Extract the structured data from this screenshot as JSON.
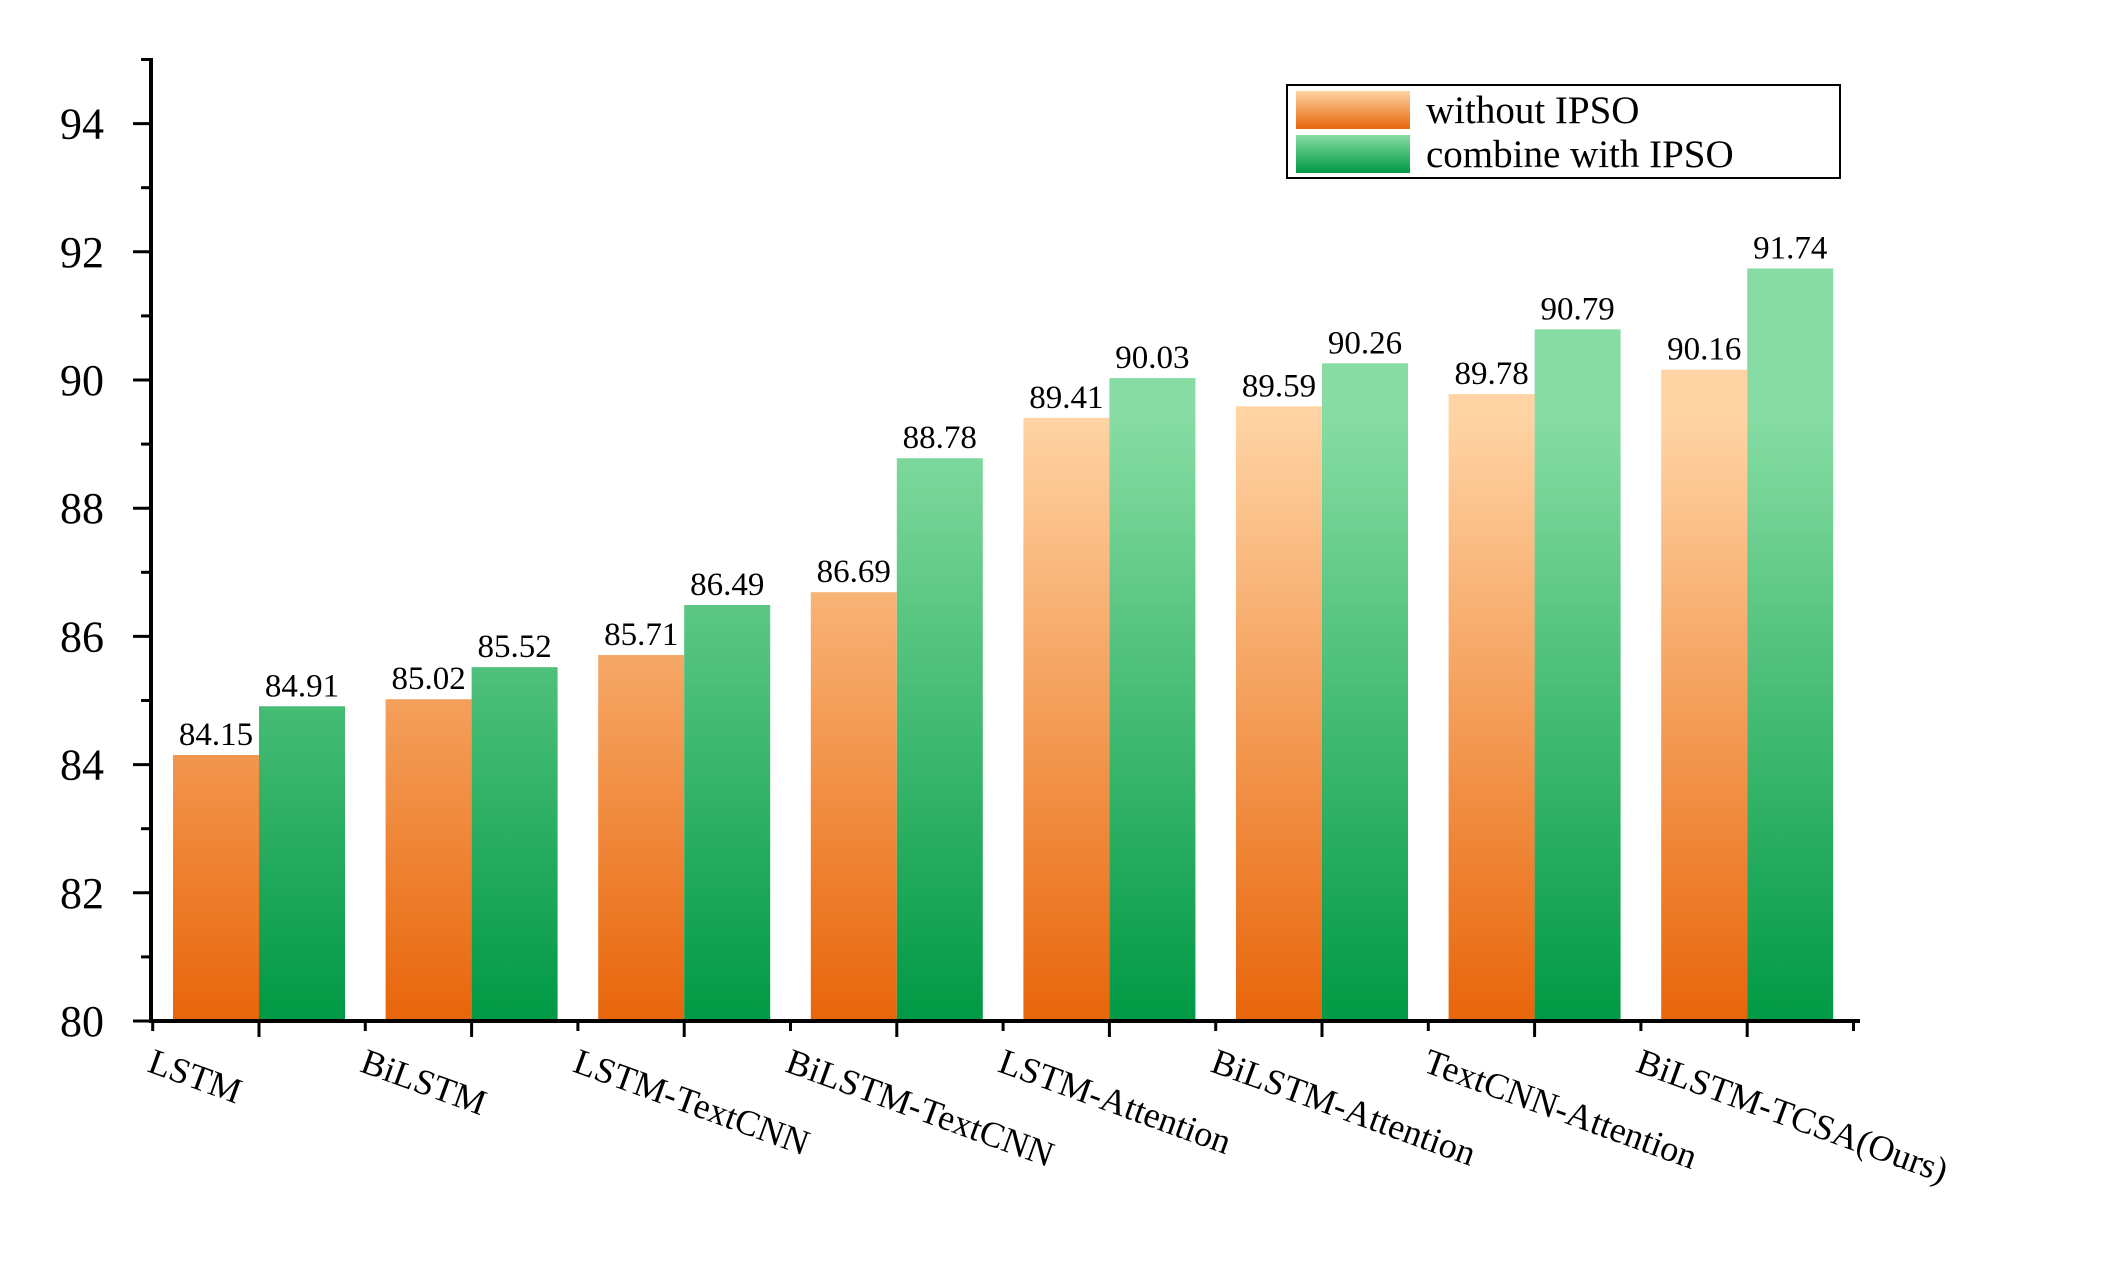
{
  "chart_data": {
    "type": "bar",
    "title": "",
    "xlabel": "",
    "ylabel": "",
    "ylim": [
      80,
      95
    ],
    "yticks": [
      80,
      82,
      84,
      86,
      88,
      90,
      92,
      94
    ],
    "grid": false,
    "legend_position": "top-right",
    "categories": [
      "LSTM",
      "BiLSTM",
      "LSTM-TextCNN",
      "BiLSTM-TextCNN",
      "LSTM-Attention",
      "BiLSTM-Attention",
      "TextCNN-Attention",
      "BiLSTM-TCSA(Ours)"
    ],
    "series": [
      {
        "name": "without IPSO",
        "values": [
          84.15,
          85.02,
          85.71,
          86.69,
          89.41,
          89.59,
          89.78,
          90.16
        ],
        "color_top": "#ffd3a3",
        "color_bottom": "#e8650a"
      },
      {
        "name": "combine with IPSO",
        "values": [
          84.91,
          85.52,
          86.49,
          88.78,
          90.03,
          90.26,
          90.79,
          91.74
        ],
        "color_top": "#86dca2",
        "color_bottom": "#009944"
      }
    ]
  }
}
